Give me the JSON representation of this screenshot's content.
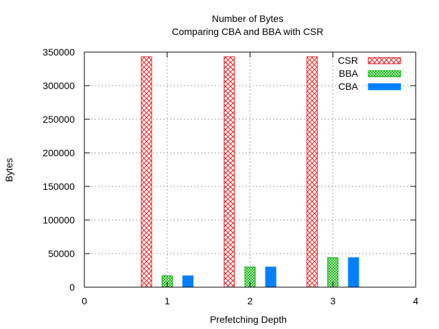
{
  "chart_data": {
    "type": "bar",
    "title": "Number of Bytes",
    "subtitle": "Comparing CBA and BBA with CSR",
    "xlabel": "Prefetching Depth",
    "ylabel": "Bytes",
    "xlim": [
      0,
      4
    ],
    "ylim": [
      0,
      350000
    ],
    "xticks": [
      0,
      1,
      2,
      3,
      4
    ],
    "yticks": [
      0,
      50000,
      100000,
      150000,
      200000,
      250000,
      300000,
      350000
    ],
    "x": [
      1,
      2,
      3
    ],
    "grid": true,
    "legend_position": "top-right",
    "series": [
      {
        "name": "CSR",
        "values": [
          343000,
          343000,
          343000
        ],
        "color": "#e31a1c",
        "pattern": "crosshatch"
      },
      {
        "name": "BBA",
        "values": [
          17000,
          30000,
          44000
        ],
        "color": "#00b000",
        "pattern": "fine-crosshatch"
      },
      {
        "name": "CBA",
        "values": [
          17000,
          30000,
          44000
        ],
        "color": "#0080ff",
        "pattern": "solid"
      }
    ]
  }
}
